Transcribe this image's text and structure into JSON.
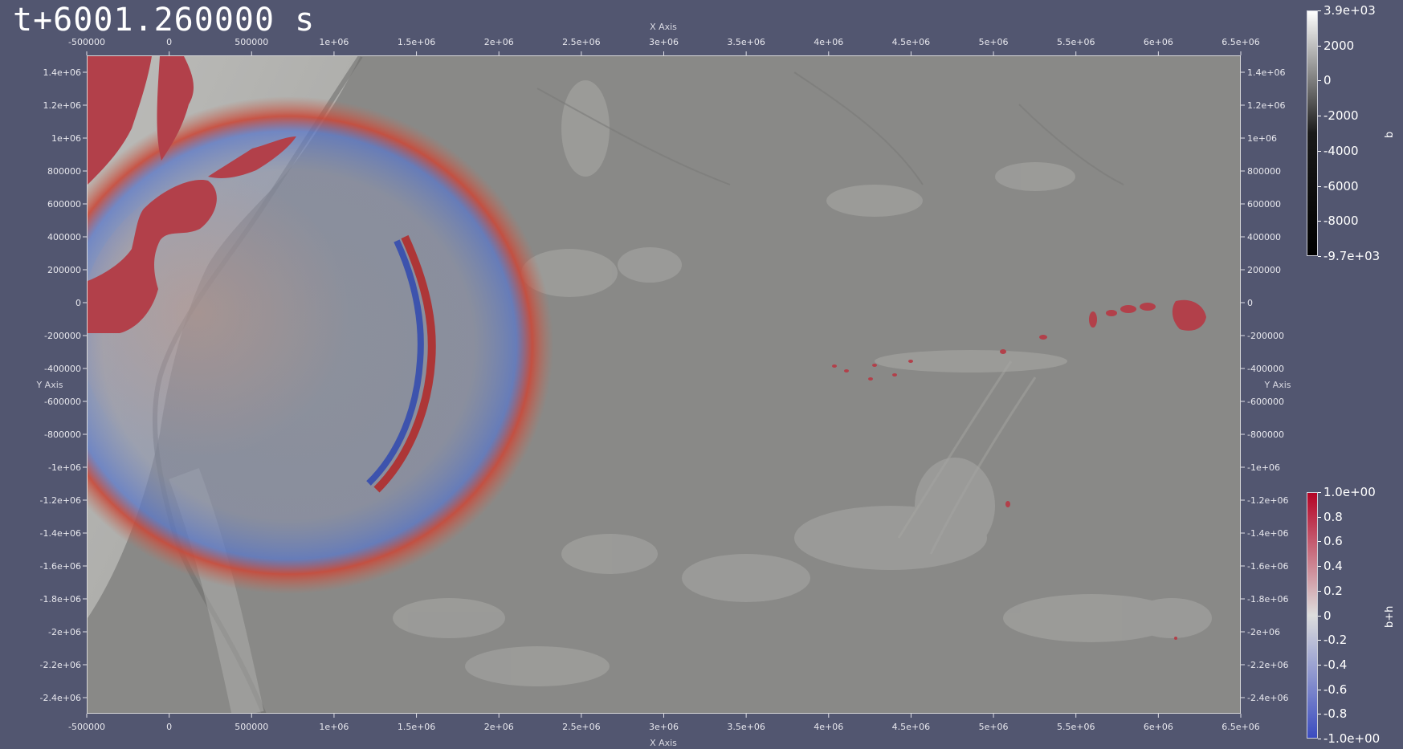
{
  "time_text": "t+6001.260000 s",
  "x_axis": {
    "title": "X Axis",
    "ticks": [
      "-500000",
      "0",
      "500000",
      "1e+06",
      "1.5e+06",
      "2e+06",
      "2.5e+06",
      "3e+06",
      "3.5e+06",
      "4e+06",
      "4.5e+06",
      "5e+06",
      "5.5e+06",
      "6e+06",
      "6.5e+06"
    ]
  },
  "y_axis": {
    "title": "Y Axis",
    "ticks": [
      "1.4e+06",
      "1.2e+06",
      "1e+06",
      "800000",
      "600000",
      "400000",
      "200000",
      "0",
      "-200000",
      "-400000",
      "-600000",
      "-800000",
      "-1e+06",
      "-1.2e+06",
      "-1.4e+06",
      "-1.6e+06",
      "-1.8e+06",
      "-2e+06",
      "-2.2e+06",
      "-2.4e+06"
    ]
  },
  "colorbar_b": {
    "title": "b",
    "labels": [
      "3.9e+03",
      "2000",
      "0",
      "-2000",
      "-4000",
      "-6000",
      "-8000",
      "-9.7e+03"
    ],
    "colors": [
      "#ffffff",
      "#1a1a1a",
      "#000000"
    ]
  },
  "colorbar_bh": {
    "title": "b+h",
    "labels": [
      "1.0e+00",
      "0.8",
      "0.6",
      "0.4",
      "0.2",
      "0",
      "-0.2",
      "-0.4",
      "-0.6",
      "-0.8",
      "-1.0e+00"
    ],
    "colors": [
      "#b40426",
      "#dddddd",
      "#3b4cc0"
    ]
  },
  "colors": {
    "background": "#525670",
    "ocean": "#8a8a88",
    "land": "#b2404a",
    "wave_positive": "#c0392b",
    "wave_negative": "#3f62c8"
  }
}
